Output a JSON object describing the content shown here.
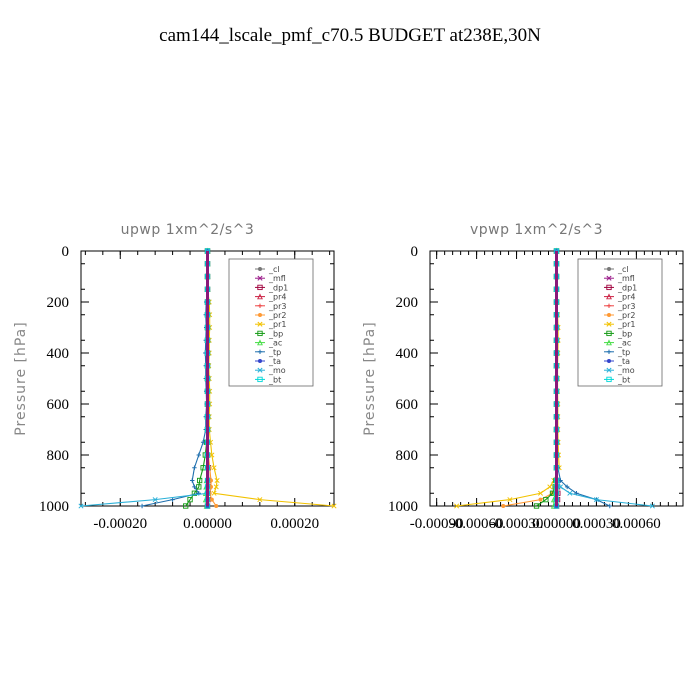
{
  "title": "cam144_lscale_pmf_c70.5  BUDGET at238E,30N",
  "chart_data": [
    {
      "type": "line",
      "title": "upwp   1xm^2/s^3",
      "ylabel": "Pressure [hPa]",
      "xlabel": "",
      "xlim": [
        -0.00029,
        0.00029
      ],
      "ylim": [
        1000,
        0
      ],
      "x_ticks": [
        -0.0002,
        0.0,
        0.0002
      ],
      "x_tick_labels": [
        "-0.00020",
        "0.00000",
        "0.00020"
      ],
      "y_ticks": [
        0,
        200,
        400,
        600,
        800,
        1000
      ],
      "y_tick_labels": [
        "0",
        "200",
        "400",
        "600",
        "800",
        "1000"
      ],
      "legend_position": "top-right",
      "pressure": [
        0,
        50,
        100,
        150,
        200,
        250,
        300,
        350,
        400,
        450,
        500,
        550,
        600,
        650,
        700,
        750,
        800,
        850,
        900,
        925,
        950,
        975,
        1000
      ],
      "series": [
        {
          "name": "_cl",
          "color": "#777777",
          "values": [
            0,
            0,
            0,
            0,
            0,
            0,
            0,
            0,
            0,
            0,
            0,
            0,
            0,
            0,
            0,
            0,
            0,
            0,
            0,
            0,
            0,
            0,
            0
          ]
        },
        {
          "name": "_mfl",
          "color": "#9b1b8a",
          "values": [
            0,
            0,
            0,
            0,
            0,
            0,
            0,
            0,
            0,
            0,
            0,
            0,
            0,
            0,
            0,
            0,
            0,
            0,
            0,
            0,
            0,
            0,
            0
          ]
        },
        {
          "name": "_dp1",
          "color": "#a0003c",
          "values": [
            0,
            0,
            0,
            0,
            0,
            0,
            0,
            0,
            0,
            0,
            0,
            0,
            0,
            0,
            0,
            0,
            0,
            2e-06,
            3e-06,
            3e-06,
            2e-06,
            1e-06,
            0
          ]
        },
        {
          "name": "_pr4",
          "color": "#cc2244",
          "values": [
            0,
            0,
            0,
            0,
            0,
            0,
            0,
            0,
            0,
            0,
            0,
            0,
            0,
            0,
            0,
            0,
            0,
            0,
            0,
            0,
            0,
            0,
            0
          ]
        },
        {
          "name": "_pr3",
          "color": "#ee4444",
          "values": [
            0,
            0,
            0,
            0,
            0,
            0,
            0,
            0,
            0,
            0,
            0,
            0,
            0,
            0,
            0,
            0,
            0,
            1e-06,
            2e-06,
            2e-06,
            1e-06,
            0,
            0
          ]
        },
        {
          "name": "_pr2",
          "color": "#ff9933",
          "values": [
            0,
            0,
            0,
            0,
            0,
            0,
            0,
            0,
            0,
            0,
            0,
            0,
            0,
            0,
            0,
            0,
            2e-06,
            5e-06,
            8e-06,
            8e-06,
            5e-06,
            1e-05,
            2e-05
          ]
        },
        {
          "name": "_pr1",
          "color": "#f2c200",
          "values": [
            0,
            0,
            0,
            0,
            4e-06,
            5e-06,
            5e-06,
            4e-06,
            4e-06,
            3e-06,
            4e-06,
            5e-06,
            5e-06,
            4e-06,
            4e-06,
            7e-06,
            1e-05,
            1.5e-05,
            2.2e-05,
            2e-05,
            1.5e-05,
            0.00012,
            0.00029
          ]
        },
        {
          "name": "_bp",
          "color": "#119911",
          "values": [
            0,
            0,
            0,
            0,
            0,
            0,
            0,
            0,
            0,
            0,
            0,
            0,
            0,
            0,
            0,
            -2e-06,
            -5e-06,
            -1e-05,
            -1.8e-05,
            -2e-05,
            -3e-05,
            -4e-05,
            -5e-05
          ]
        },
        {
          "name": "_ac",
          "color": "#44dd44",
          "values": [
            0,
            0,
            0,
            0,
            0,
            0,
            0,
            0,
            0,
            0,
            0,
            0,
            0,
            0,
            0,
            0,
            0,
            0,
            -2e-06,
            -3e-06,
            -4e-06,
            -4e-06,
            -2e-06
          ]
        },
        {
          "name": "_tp",
          "color": "#1e6fae",
          "values": [
            0,
            0,
            0,
            0,
            -3e-06,
            -4e-06,
            -3e-06,
            -4e-06,
            -5e-06,
            -4e-06,
            -4e-06,
            -3e-06,
            -2e-06,
            -4e-06,
            -4e-06,
            -1e-05,
            -2e-05,
            -3e-05,
            -3.5e-05,
            -3e-05,
            -2e-05,
            -8e-05,
            -0.00015
          ]
        },
        {
          "name": "_ta",
          "color": "#3344cc",
          "values": [
            0,
            0,
            0,
            0,
            0,
            0,
            0,
            0,
            0,
            0,
            0,
            0,
            0,
            0,
            0,
            0,
            0,
            0,
            0,
            0,
            0,
            0,
            0
          ]
        },
        {
          "name": "_mo",
          "color": "#2ab0d8",
          "values": [
            0,
            0,
            0,
            0,
            0,
            0,
            0,
            0,
            0,
            0,
            0,
            0,
            0,
            0,
            0,
            0,
            0,
            0,
            0,
            0,
            0,
            -0.00012,
            -0.00029
          ]
        },
        {
          "name": "_bt",
          "color": "#00d8d8",
          "values": [
            0,
            0,
            0,
            0,
            0,
            0,
            0,
            0,
            0,
            0,
            0,
            0,
            0,
            0,
            0,
            0,
            0,
            0,
            0,
            0,
            0,
            0,
            0
          ]
        }
      ]
    },
    {
      "type": "line",
      "title": "vpwp   1xm^2/s^3",
      "ylabel": "Pressure [hPa]",
      "xlabel": "",
      "xlim": [
        -0.00095,
        0.00095
      ],
      "ylim": [
        1000,
        0
      ],
      "x_ticks": [
        -0.0009,
        -0.0006,
        -0.0003,
        0.0,
        0.0003,
        0.0006
      ],
      "x_tick_labels": [
        "-0.00090",
        "-0.00060",
        "-0.00030",
        "0.00000",
        "0.00030",
        "0.00060"
      ],
      "y_ticks": [
        0,
        200,
        400,
        600,
        800,
        1000
      ],
      "y_tick_labels": [
        "0",
        "200",
        "400",
        "600",
        "800",
        "1000"
      ],
      "legend_position": "top-right",
      "pressure": [
        0,
        50,
        100,
        150,
        200,
        250,
        300,
        350,
        400,
        450,
        500,
        550,
        600,
        650,
        700,
        750,
        800,
        850,
        900,
        925,
        950,
        975,
        1000
      ],
      "series": [
        {
          "name": "_cl",
          "color": "#777777",
          "values": [
            0,
            0,
            0,
            0,
            0,
            0,
            0,
            0,
            0,
            0,
            0,
            0,
            0,
            0,
            0,
            0,
            0,
            0,
            0,
            0,
            0,
            0,
            0
          ]
        },
        {
          "name": "_mfl",
          "color": "#9b1b8a",
          "values": [
            0,
            0,
            0,
            0,
            0,
            0,
            0,
            0,
            0,
            0,
            0,
            0,
            0,
            0,
            0,
            0,
            0,
            0,
            0,
            0,
            0,
            0,
            0
          ]
        },
        {
          "name": "_dp1",
          "color": "#a0003c",
          "values": [
            0,
            0,
            0,
            0,
            0,
            0,
            0,
            0,
            0,
            0,
            0,
            0,
            0,
            0,
            0,
            0,
            0,
            0,
            5e-06,
            8e-06,
            1e-05,
            8e-06,
            0
          ]
        },
        {
          "name": "_pr4",
          "color": "#cc2244",
          "values": [
            0,
            0,
            0,
            0,
            0,
            0,
            0,
            0,
            0,
            0,
            0,
            0,
            0,
            0,
            0,
            0,
            0,
            0,
            0,
            0,
            0,
            0,
            0
          ]
        },
        {
          "name": "_pr3",
          "color": "#ee4444",
          "values": [
            0,
            0,
            0,
            0,
            0,
            0,
            0,
            0,
            0,
            0,
            0,
            0,
            0,
            0,
            0,
            0,
            0,
            0,
            0,
            0,
            0,
            0,
            0
          ]
        },
        {
          "name": "_pr2",
          "color": "#ff9933",
          "values": [
            0,
            0,
            0,
            0,
            0,
            0,
            0,
            0,
            0,
            0,
            0,
            0,
            0,
            0,
            0,
            0,
            0,
            0,
            -5e-06,
            -1e-05,
            -3e-05,
            -0.00012,
            -0.0004
          ]
        },
        {
          "name": "_pr1",
          "color": "#f2c200",
          "values": [
            0,
            0,
            0,
            0,
            5e-06,
            8e-06,
            1.2e-05,
            1.2e-05,
            1e-05,
            8e-06,
            8e-06,
            8e-06,
            1e-05,
            1e-05,
            1e-05,
            1.2e-05,
            1.5e-05,
            2e-05,
            -2e-05,
            -5e-05,
            -0.00012,
            -0.00035,
            -0.00075
          ]
        },
        {
          "name": "_bp",
          "color": "#119911",
          "values": [
            0,
            0,
            0,
            0,
            0,
            0,
            0,
            0,
            0,
            0,
            0,
            0,
            0,
            0,
            0,
            0,
            0,
            0,
            -5e-06,
            -1e-05,
            -3e-05,
            -8e-05,
            -0.00015
          ]
        },
        {
          "name": "_ac",
          "color": "#44dd44",
          "values": [
            0,
            0,
            0,
            0,
            0,
            0,
            0,
            0,
            0,
            0,
            0,
            0,
            0,
            0,
            0,
            0,
            0,
            0,
            0,
            0,
            -1e-05,
            -2e-05,
            -2e-05
          ]
        },
        {
          "name": "_tp",
          "color": "#1e6fae",
          "values": [
            0,
            0,
            0,
            0,
            0,
            0,
            0,
            0,
            0,
            0,
            0,
            0,
            0,
            0,
            0,
            0,
            0,
            1e-05,
            3e-05,
            8e-05,
            0.00015,
            0.0003,
            0.0004
          ]
        },
        {
          "name": "_ta",
          "color": "#3344cc",
          "values": [
            0,
            0,
            0,
            0,
            0,
            0,
            0,
            0,
            0,
            0,
            0,
            0,
            0,
            0,
            0,
            0,
            0,
            0,
            0,
            0,
            0,
            0,
            0
          ]
        },
        {
          "name": "_mo",
          "color": "#2ab0d8",
          "values": [
            0,
            0,
            0,
            0,
            0,
            0,
            0,
            0,
            0,
            0,
            0,
            0,
            0,
            0,
            0,
            0,
            0,
            0,
            1e-05,
            3e-05,
            0.0001,
            0.0003,
            0.00072
          ]
        },
        {
          "name": "_bt",
          "color": "#00d8d8",
          "values": [
            0,
            0,
            0,
            0,
            0,
            0,
            0,
            0,
            0,
            0,
            0,
            0,
            0,
            0,
            0,
            0,
            0,
            0,
            0,
            0,
            0,
            0,
            0
          ]
        }
      ]
    }
  ]
}
